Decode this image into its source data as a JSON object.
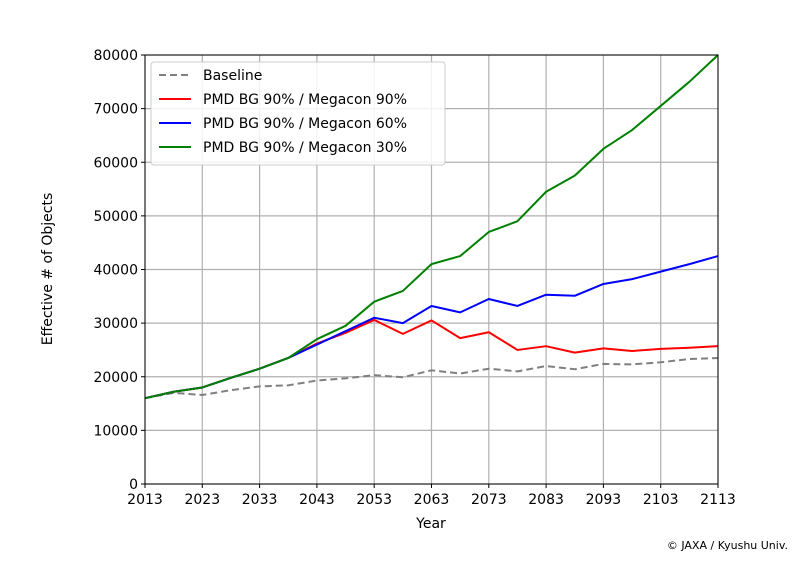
{
  "chart_data": {
    "type": "line",
    "title": "",
    "xlabel": "Year",
    "ylabel": "Effective # of Objects",
    "xlim": [
      2013,
      2113
    ],
    "ylim": [
      0,
      80000
    ],
    "grid": true,
    "legend_position": "top-left",
    "xticks": [
      2013,
      2023,
      2033,
      2043,
      2053,
      2063,
      2073,
      2083,
      2093,
      2103,
      2113
    ],
    "yticks": [
      0,
      10000,
      20000,
      30000,
      40000,
      50000,
      60000,
      70000,
      80000
    ],
    "x": [
      2013,
      2018,
      2023,
      2028,
      2033,
      2038,
      2043,
      2048,
      2053,
      2058,
      2063,
      2068,
      2073,
      2078,
      2083,
      2088,
      2093,
      2098,
      2103,
      2108,
      2113
    ],
    "series": [
      {
        "name": "Baseline",
        "color": "#808080",
        "dashed": true,
        "values": [
          16000,
          17000,
          16600,
          17500,
          18200,
          18400,
          19300,
          19700,
          20300,
          19900,
          21200,
          20600,
          21500,
          21000,
          22000,
          21400,
          22400,
          22300,
          22700,
          23300,
          23500
        ]
      },
      {
        "name": "PMD BG 90% / Megacon 90%",
        "color": "#ff0000",
        "dashed": false,
        "values": [
          16000,
          17200,
          18000,
          19800,
          21500,
          23500,
          26200,
          28200,
          30600,
          28000,
          30500,
          27200,
          28300,
          25000,
          25700,
          24500,
          25300,
          24800,
          25200,
          25400,
          25700
        ]
      },
      {
        "name": "PMD BG 90% / Megacon 60%",
        "color": "#0000ff",
        "dashed": false,
        "values": [
          16000,
          17200,
          18000,
          19800,
          21500,
          23500,
          26000,
          28500,
          31000,
          30000,
          33200,
          32000,
          34500,
          33200,
          35300,
          35100,
          37300,
          38200,
          39600,
          41000,
          42500
        ]
      },
      {
        "name": "PMD BG 90% / Megacon 30%",
        "color": "#008000",
        "dashed": false,
        "values": [
          16000,
          17200,
          18000,
          19800,
          21500,
          23500,
          27000,
          29500,
          34000,
          36000,
          41000,
          42500,
          47000,
          49000,
          54500,
          57500,
          62500,
          66000,
          70500,
          75000,
          80000
        ]
      }
    ]
  },
  "credit": "© JAXA / Kyushu Univ."
}
